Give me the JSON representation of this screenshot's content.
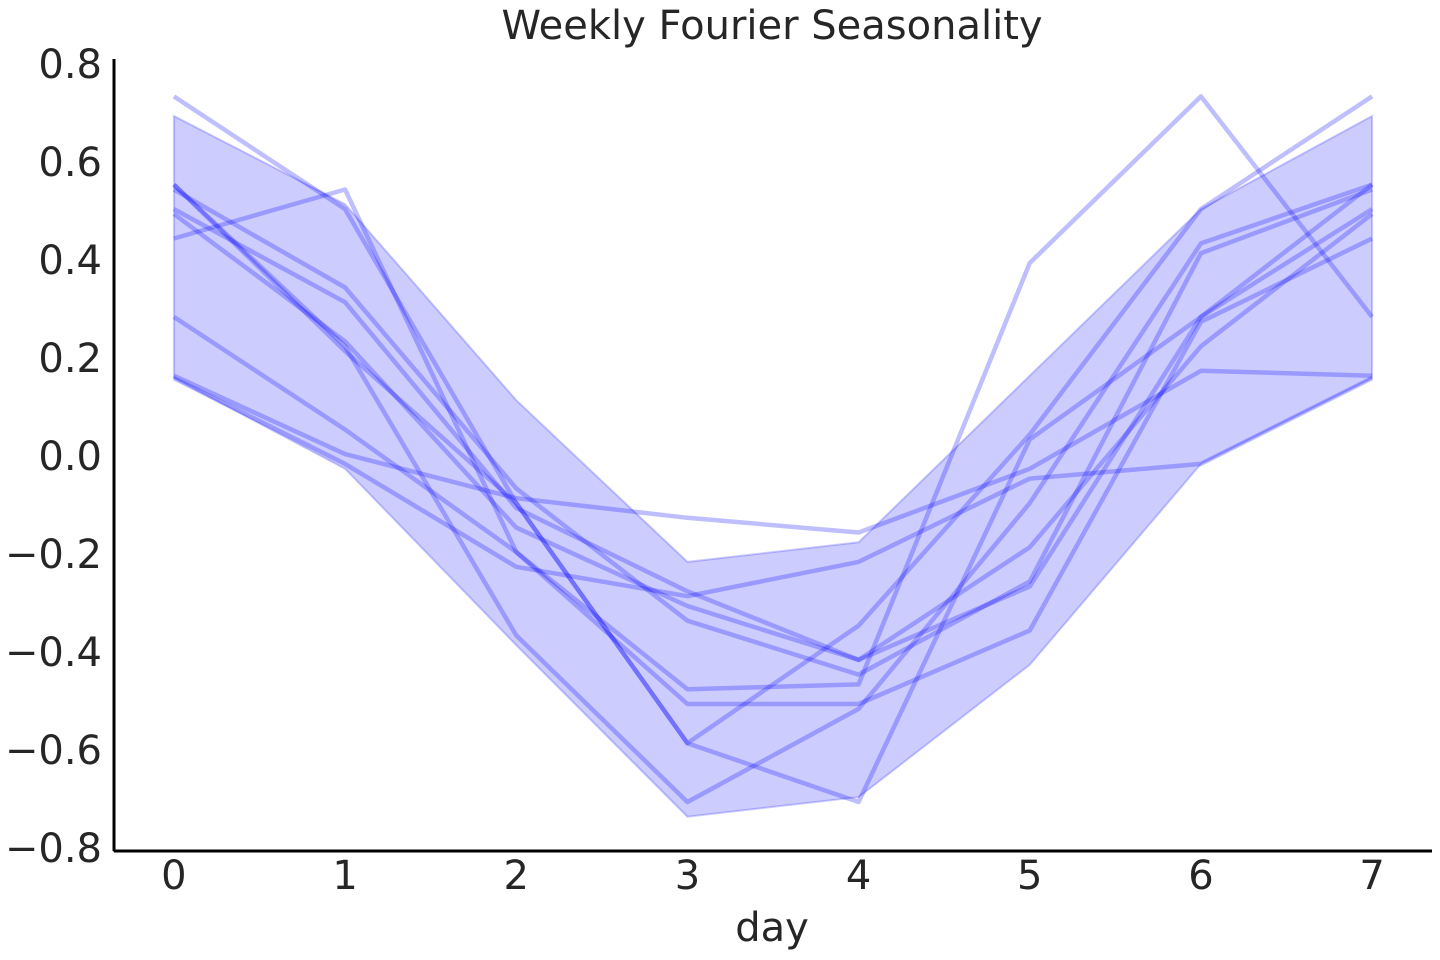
{
  "chart_data": {
    "type": "line",
    "title": "Weekly Fourier Seasonality",
    "xlabel": "day",
    "x": [
      0,
      1,
      2,
      3,
      4,
      5,
      6,
      7
    ],
    "xlim": [
      -0.35,
      7.35
    ],
    "xticks": [
      0,
      1,
      2,
      3,
      4,
      5,
      6,
      7
    ],
    "ylim": [
      -0.8,
      0.8
    ],
    "yticks": [
      {
        "value": -0.8,
        "label": "−0.8"
      },
      {
        "value": -0.6,
        "label": "−0.6"
      },
      {
        "value": -0.4,
        "label": "−0.4"
      },
      {
        "value": -0.2,
        "label": "−0.2"
      },
      {
        "value": 0,
        "label": "0.0"
      },
      0.2,
      0.4,
      0.6,
      0.8
    ],
    "band": {
      "color": "#0000ff",
      "upper": [
        0.7,
        0.52,
        0.12,
        -0.21,
        -0.17,
        0.17,
        0.51,
        0.7
      ],
      "lower": [
        0.165,
        -0.02,
        -0.38,
        -0.73,
        -0.69,
        -0.42,
        -0.01,
        0.165
      ]
    },
    "series": [
      {
        "color": "#0000ff",
        "values": [
          0.29,
          0.06,
          -0.19,
          -0.47,
          -0.46,
          0.4,
          0.74,
          0.29
        ]
      },
      {
        "color": "#0000ff",
        "values": [
          0.74,
          0.51,
          -0.09,
          -0.58,
          -0.34,
          0.05,
          0.51,
          0.74
        ]
      },
      {
        "color": "#0000ff",
        "values": [
          0.56,
          0.23,
          -0.36,
          -0.7,
          -0.51,
          -0.09,
          0.44,
          0.56
        ]
      },
      {
        "color": "#0000ff",
        "values": [
          0.55,
          0.35,
          -0.06,
          -0.33,
          -0.44,
          -0.25,
          0.42,
          0.55
        ]
      },
      {
        "color": "#0000ff",
        "values": [
          0.51,
          0.32,
          -0.1,
          -0.27,
          -0.41,
          -0.26,
          0.29,
          0.51
        ]
      },
      {
        "color": "#0000ff",
        "values": [
          0.5,
          0.24,
          -0.14,
          -0.3,
          -0.41,
          -0.18,
          0.23,
          0.5
        ]
      },
      {
        "color": "#0000ff",
        "values": [
          0.45,
          0.55,
          -0.19,
          -0.5,
          -0.5,
          -0.35,
          0.28,
          0.45
        ]
      },
      {
        "color": "#0000ff",
        "values": [
          0.17,
          0.01,
          -0.08,
          -0.12,
          -0.15,
          -0.02,
          0.18,
          0.17
        ]
      },
      {
        "color": "#0000ff",
        "values": [
          0.165,
          -0.01,
          -0.22,
          -0.28,
          -0.21,
          -0.04,
          -0.01,
          0.165
        ]
      },
      {
        "color": "#0000ff",
        "values": [
          0.56,
          0.22,
          -0.09,
          -0.58,
          -0.7,
          0.04,
          0.29,
          0.56
        ]
      }
    ]
  }
}
